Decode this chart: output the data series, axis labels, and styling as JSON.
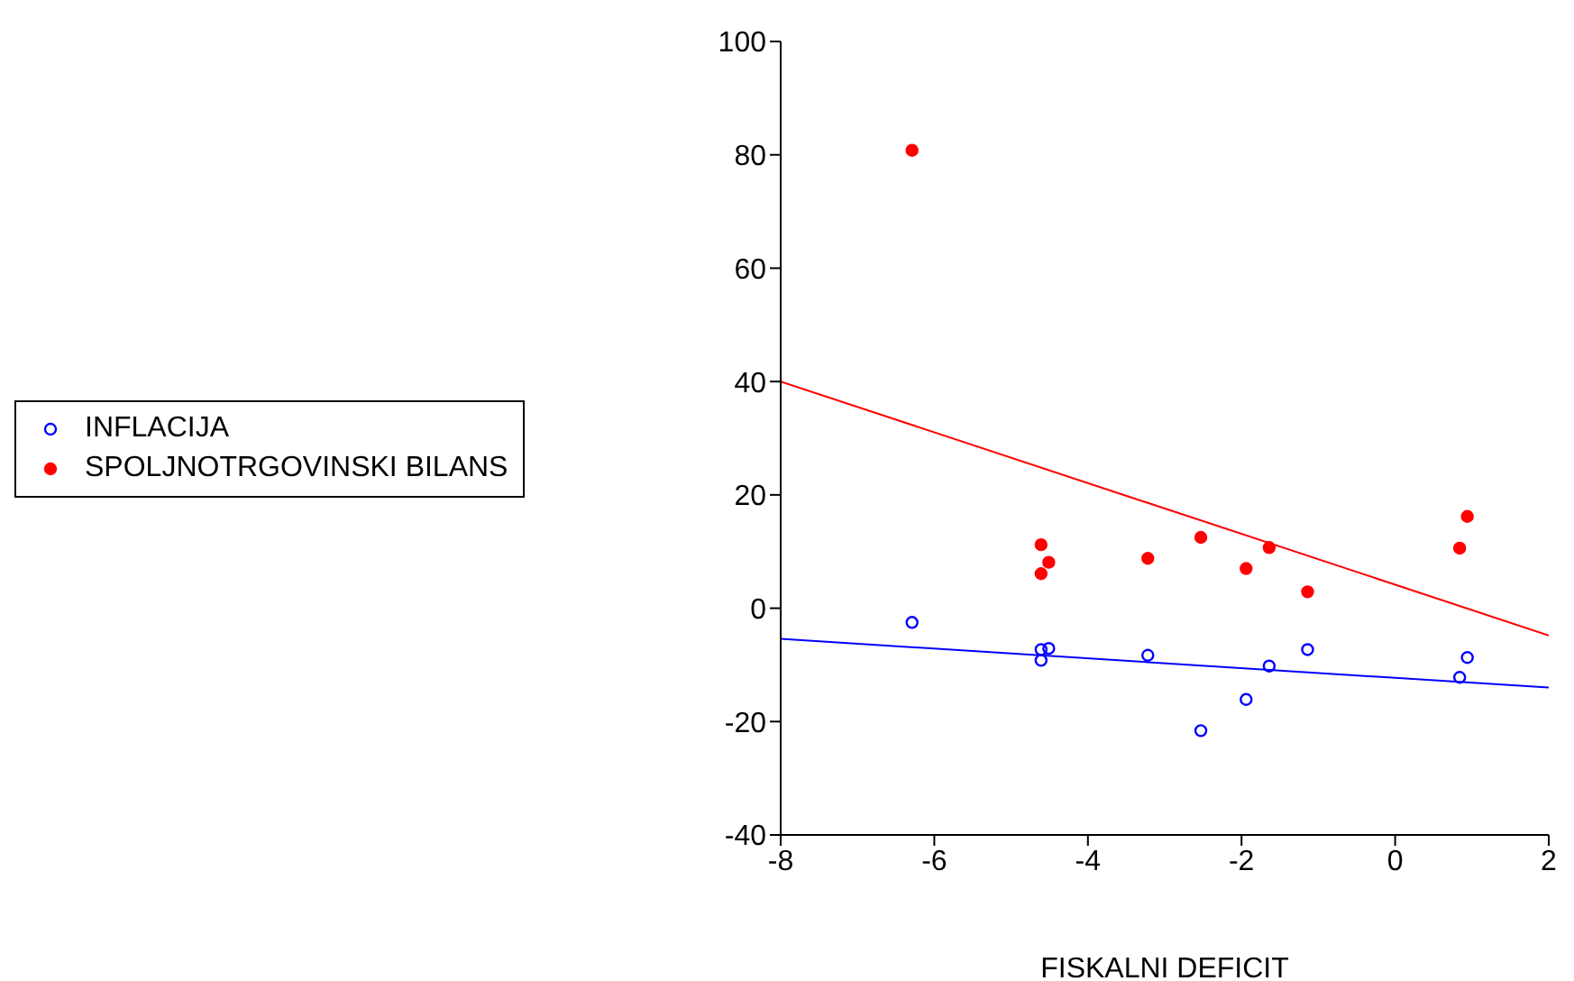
{
  "chart_data": {
    "type": "scatter",
    "xlabel": "FISKALNI DEFICIT",
    "xlim": [
      -8,
      2
    ],
    "xticks": [
      -8,
      -6,
      -4,
      -2,
      0,
      2
    ],
    "ylim": [
      -40,
      100
    ],
    "yticks": [
      -40,
      -20,
      0,
      20,
      40,
      60,
      80,
      100
    ],
    "grid": false,
    "legend": "left",
    "series": [
      {
        "name": "INFLACIJA",
        "color": "#0000ff",
        "marker": "circle",
        "x": [
          -6.29,
          -4.61,
          -4.51,
          -4.61,
          -3.22,
          -2.53,
          -1.94,
          -1.64,
          -1.14,
          0.84,
          0.94
        ],
        "values": [
          -2.5,
          -7.3,
          -7.1,
          -9.2,
          -8.3,
          -21.6,
          -16.1,
          -10.2,
          -7.3,
          -12.2,
          -8.7
        ]
      },
      {
        "name": "SPOLJNOTRGOVINSKI BILANS",
        "color": "#ff0000",
        "marker": "circle",
        "x": [
          -6.29,
          -4.61,
          -4.51,
          -4.61,
          -3.22,
          -2.53,
          -1.94,
          -1.64,
          -1.14,
          0.84,
          0.94
        ],
        "values": [
          80.8,
          11.2,
          8.1,
          6.1,
          8.8,
          12.5,
          7.0,
          10.7,
          2.9,
          10.6,
          16.2
        ]
      },
      {
        "type": "line",
        "color": "#0000ff",
        "x": [
          -8,
          2
        ],
        "values": [
          -5.4,
          -14
        ]
      },
      {
        "type": "line",
        "color": "#ff0000",
        "x": [
          -8,
          2
        ],
        "values": [
          40,
          -4.8
        ]
      }
    ]
  }
}
